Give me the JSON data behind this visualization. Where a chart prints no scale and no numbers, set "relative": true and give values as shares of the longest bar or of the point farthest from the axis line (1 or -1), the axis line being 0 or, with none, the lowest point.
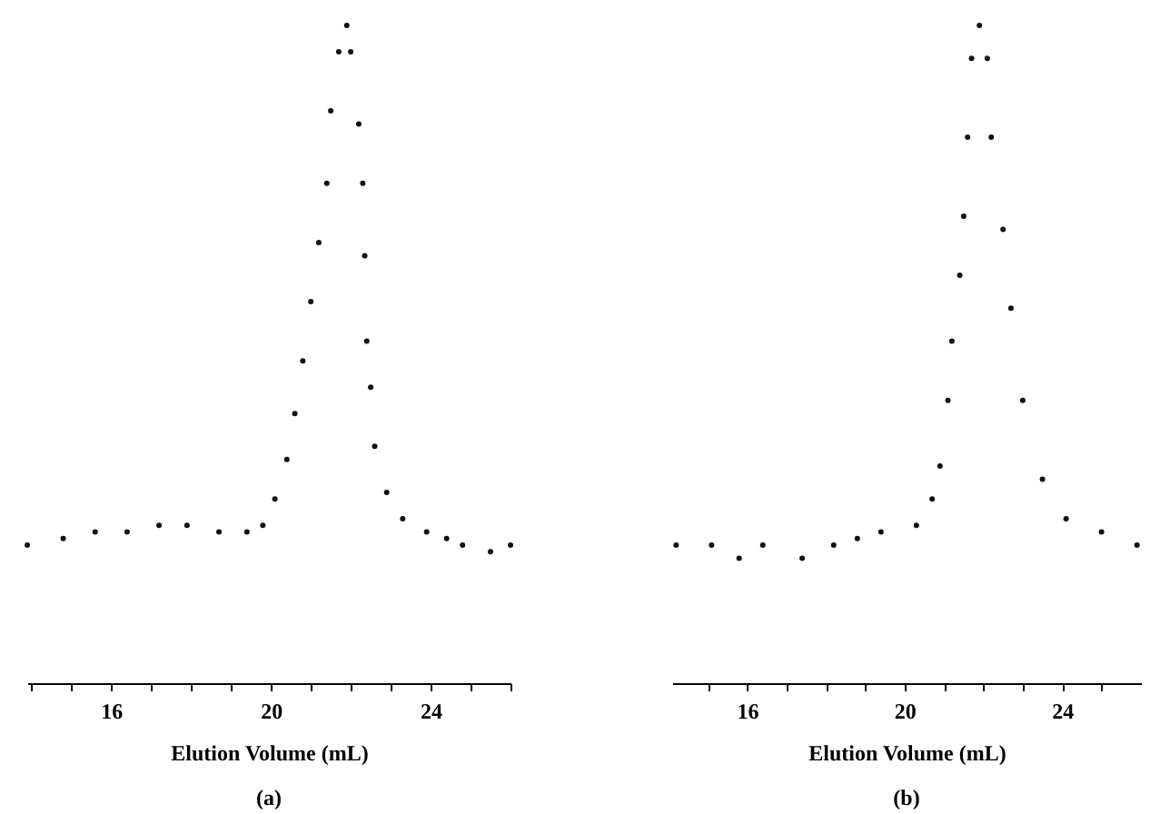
{
  "chart_data": [
    {
      "type": "scatter",
      "xlabel": "Elution Volume (mL)",
      "annotations": [
        "(a)"
      ],
      "relative": true,
      "marker": "circle",
      "grid": false,
      "tick_labels": "x",
      "xlim": [
        13.9,
        26
      ],
      "xticks": [
        {
          "value": 14,
          "label": null
        },
        {
          "value": 15,
          "label": null
        },
        16,
        {
          "value": 17,
          "label": null
        },
        {
          "value": 18,
          "label": null
        },
        {
          "value": 19,
          "label": null
        },
        20,
        {
          "value": 21,
          "label": null
        },
        {
          "value": 22,
          "label": null
        },
        {
          "value": 23,
          "label": null
        },
        24,
        {
          "value": 25,
          "label": null
        },
        {
          "value": 26,
          "label": null
        }
      ],
      "series": [
        {
          "color": "#111111",
          "x": [
            13.9,
            14.8,
            15.6,
            16.4,
            17.2,
            17.9,
            18.7,
            19.4,
            19.8,
            20.1,
            20.4,
            20.6,
            20.8,
            21.0,
            21.2,
            21.4,
            21.5,
            21.7,
            21.9,
            22.0,
            22.2,
            22.3,
            22.35,
            22.4,
            22.5,
            22.6,
            22.9,
            23.3,
            23.9,
            24.4,
            24.8,
            25.5,
            26.0
          ],
          "values": [
            0.21,
            0.22,
            0.23,
            0.23,
            0.24,
            0.24,
            0.23,
            0.23,
            0.24,
            0.28,
            0.34,
            0.41,
            0.49,
            0.58,
            0.67,
            0.76,
            0.87,
            0.96,
            1.0,
            0.96,
            0.85,
            0.76,
            0.65,
            0.52,
            0.45,
            0.36,
            0.29,
            0.25,
            0.23,
            0.22,
            0.21,
            0.2,
            0.21
          ]
        }
      ]
    },
    {
      "type": "scatter",
      "xlabel": "Elution Volume (mL)",
      "annotations": [
        "(b)"
      ],
      "relative": true,
      "marker": "circle",
      "grid": false,
      "tick_labels": "x",
      "xlim": [
        14.1,
        26
      ],
      "xticks": [
        {
          "value": 15,
          "label": null
        },
        16,
        {
          "value": 17,
          "label": null
        },
        {
          "value": 18,
          "label": null
        },
        {
          "value": 19,
          "label": null
        },
        20,
        {
          "value": 21,
          "label": null
        },
        {
          "value": 22,
          "label": null
        },
        {
          "value": 23,
          "label": null
        },
        24,
        {
          "value": 25,
          "label": null
        }
      ],
      "series": [
        {
          "color": "#111111",
          "x": [
            14.2,
            15.1,
            15.8,
            16.4,
            17.4,
            18.2,
            18.8,
            19.4,
            20.3,
            20.7,
            20.9,
            21.1,
            21.2,
            21.4,
            21.5,
            21.6,
            21.7,
            21.9,
            22.1,
            22.2,
            22.5,
            22.7,
            23.0,
            23.5,
            24.1,
            25.0,
            25.9
          ],
          "values": [
            0.21,
            0.21,
            0.19,
            0.21,
            0.19,
            0.21,
            0.22,
            0.23,
            0.24,
            0.28,
            0.33,
            0.43,
            0.52,
            0.62,
            0.71,
            0.83,
            0.95,
            1.0,
            0.95,
            0.83,
            0.69,
            0.57,
            0.43,
            0.31,
            0.25,
            0.23,
            0.21
          ]
        }
      ]
    }
  ]
}
